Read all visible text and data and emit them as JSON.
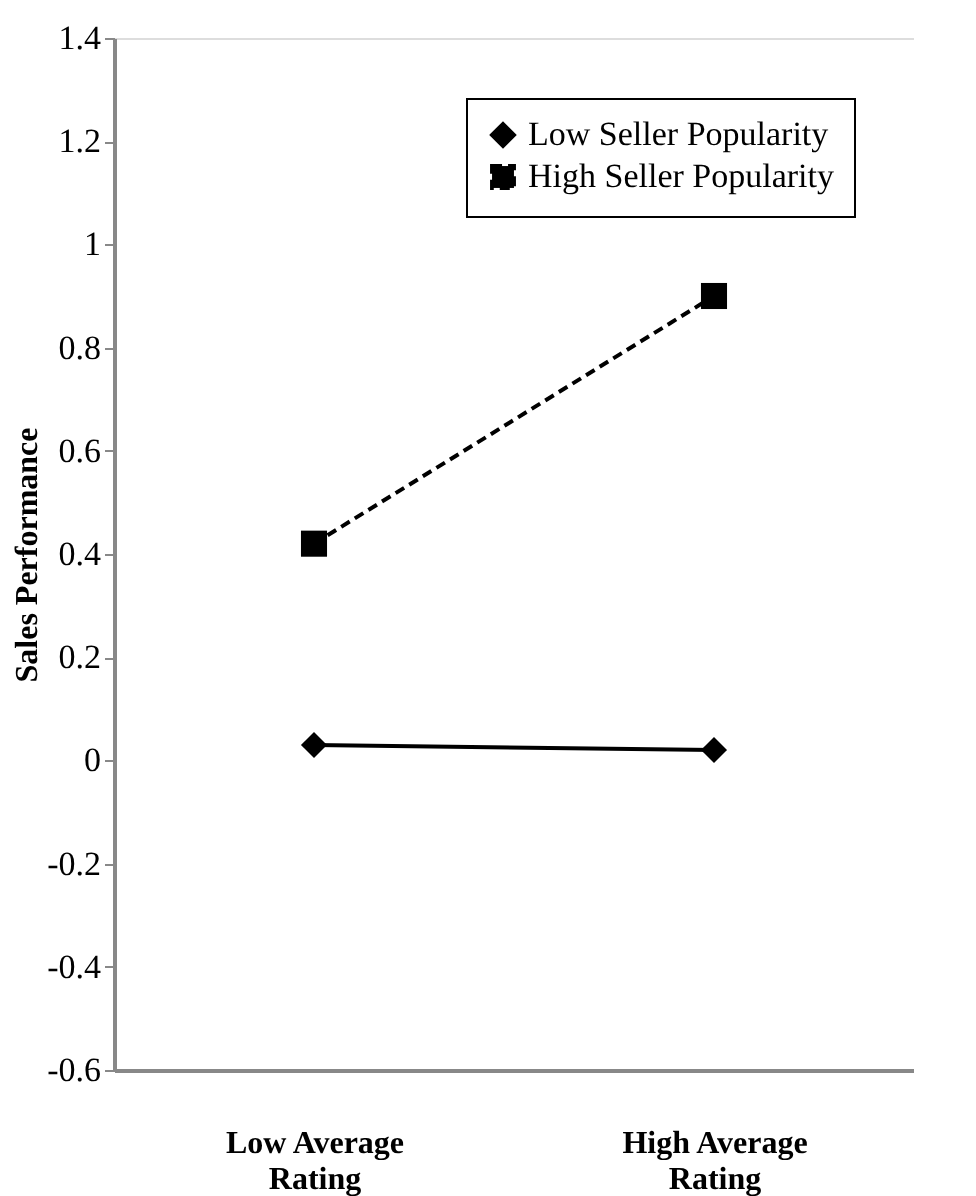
{
  "chart_data": {
    "type": "line",
    "ylabel": "Sales Performance",
    "categories": [
      "Low Average Rating",
      "High Average Rating"
    ],
    "series": [
      {
        "name": "Low Seller Popularity",
        "color": "#000000",
        "values": [
          0.03,
          0.02
        ],
        "marker": "diamond",
        "line_style": "solid"
      },
      {
        "name": "High Seller Popularity",
        "color": "#000000",
        "values": [
          0.42,
          0.9
        ],
        "marker": "square",
        "line_style": "dashed"
      }
    ],
    "ylim": [
      -0.6,
      1.4
    ],
    "yticks": [
      -0.6,
      -0.4,
      -0.2,
      0,
      0.2,
      0.4,
      0.6,
      0.8,
      1,
      1.2,
      1.4
    ],
    "grid": false,
    "legend": "top right"
  }
}
